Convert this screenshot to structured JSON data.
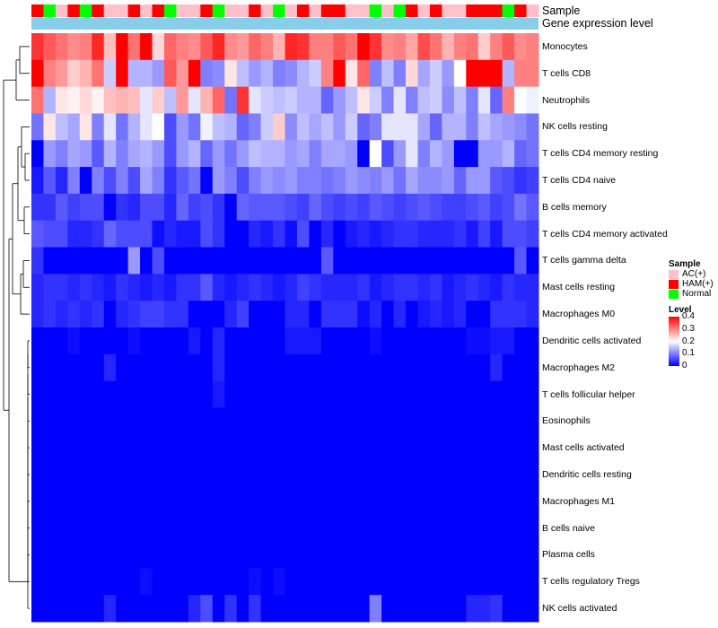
{
  "chart_data": {
    "type": "heatmap",
    "annotation_labels": {
      "sample": "Sample",
      "gene_expression": "Gene expression level"
    },
    "sample_groups": [
      "AC(+)",
      "HAM(+)",
      "Normal"
    ],
    "sample_colors": {
      "AC(+)": "#ffc0cb",
      "HAM(+)": "#ff0000",
      "Normal": "#00ff00"
    },
    "gene_expression_color": "#87ceeb",
    "samples": [
      "HAM(+)",
      "Normal",
      "AC(+)",
      "HAM(+)",
      "Normal",
      "HAM(+)",
      "AC(+)",
      "AC(+)",
      "HAM(+)",
      "AC(+)",
      "HAM(+)",
      "Normal",
      "AC(+)",
      "AC(+)",
      "HAM(+)",
      "Normal",
      "AC(+)",
      "AC(+)",
      "HAM(+)",
      "AC(+)",
      "Normal",
      "AC(+)",
      "HAM(+)",
      "AC(+)",
      "HAM(+)",
      "HAM(+)",
      "AC(+)",
      "AC(+)",
      "Normal",
      "AC(+)",
      "Normal",
      "HAM(+)",
      "AC(+)",
      "HAM(+)",
      "AC(+)",
      "AC(+)",
      "HAM(+)",
      "HAM(+)",
      "HAM(+)",
      "Normal",
      "HAM(+)",
      "AC(+)"
    ],
    "rows": [
      "Monocytes",
      "T cells CD8",
      "Neutrophils",
      "NK cells resting",
      "T cells CD4 memory resting",
      "T cells CD4 naive",
      "B cells memory",
      "T cells CD4 memory activated",
      "T cells gamma delta",
      "Mast cells resting",
      "Macrophages M0",
      "Dendritic cells activated",
      "Macrophages M2",
      "T cells follicular helper",
      "Eosinophils",
      "Mast cells activated",
      "Dendritic cells resting",
      "Macrophages M1",
      "B cells naive",
      "Plasma cells",
      "T cells regulatory  Tregs",
      "NK cells activated"
    ],
    "values": [
      [
        0.36,
        0.33,
        0.31,
        0.29,
        0.3,
        0.37,
        0.25,
        0.4,
        0.31,
        0.4,
        0.23,
        0.32,
        0.3,
        0.29,
        0.33,
        0.37,
        0.29,
        0.28,
        0.32,
        0.3,
        0.26,
        0.37,
        0.36,
        0.3,
        0.3,
        0.33,
        0.31,
        0.4,
        0.36,
        0.29,
        0.3,
        0.27,
        0.34,
        0.31,
        0.26,
        0.3,
        0.31,
        0.24,
        0.3,
        0.33,
        0.29,
        0.3
      ],
      [
        0.4,
        0.3,
        0.28,
        0.24,
        0.26,
        0.31,
        0.16,
        0.4,
        0.14,
        0.14,
        0.12,
        0.33,
        0.28,
        0.4,
        0.1,
        0.11,
        0.22,
        0.15,
        0.12,
        0.14,
        0.1,
        0.11,
        0.14,
        0.16,
        0.3,
        0.4,
        0.22,
        0.32,
        0.1,
        0.15,
        0.1,
        0.23,
        0.13,
        0.16,
        0.12,
        0.2,
        0.4,
        0.4,
        0.4,
        0.14,
        0.3,
        0.3
      ],
      [
        0.31,
        0.14,
        0.22,
        0.21,
        0.23,
        0.21,
        0.25,
        0.26,
        0.25,
        0.18,
        0.24,
        0.15,
        0.28,
        0.18,
        0.26,
        0.32,
        0.09,
        0.36,
        0.18,
        0.16,
        0.15,
        0.16,
        0.14,
        0.14,
        0.08,
        0.12,
        0.15,
        0.22,
        0.16,
        0.1,
        0.18,
        0.1,
        0.15,
        0.16,
        0.11,
        0.15,
        0.1,
        0.18,
        0.08,
        0.3,
        0.2,
        0.19
      ],
      [
        0.09,
        0.22,
        0.15,
        0.13,
        0.22,
        0.1,
        0.18,
        0.09,
        0.14,
        0.18,
        0.2,
        0.06,
        0.12,
        0.09,
        0.19,
        0.15,
        0.14,
        0.08,
        0.1,
        0.16,
        0.24,
        0.11,
        0.15,
        0.13,
        0.15,
        0.12,
        0.16,
        0.08,
        0.1,
        0.18,
        0.18,
        0.18,
        0.13,
        0.08,
        0.14,
        0.14,
        0.1,
        0.15,
        0.13,
        0.12,
        0.11,
        0.09
      ],
      [
        0.0,
        0.12,
        0.1,
        0.13,
        0.12,
        0.07,
        0.14,
        0.1,
        0.13,
        0.14,
        0.12,
        0.06,
        0.12,
        0.14,
        0.08,
        0.12,
        0.09,
        0.12,
        0.15,
        0.14,
        0.14,
        0.12,
        0.13,
        0.1,
        0.13,
        0.13,
        0.12,
        0.0,
        0.2,
        0.06,
        0.12,
        0.18,
        0.1,
        0.14,
        0.12,
        0.0,
        0.0,
        0.12,
        0.12,
        0.14,
        0.08,
        0.09
      ],
      [
        0.02,
        0.07,
        0.03,
        0.1,
        0.0,
        0.1,
        0.06,
        0.1,
        0.06,
        0.13,
        0.1,
        0.04,
        0.07,
        0.09,
        0.0,
        0.12,
        0.1,
        0.06,
        0.1,
        0.12,
        0.11,
        0.12,
        0.1,
        0.1,
        0.09,
        0.1,
        0.12,
        0.11,
        0.1,
        0.12,
        0.09,
        0.13,
        0.11,
        0.11,
        0.12,
        0.08,
        0.12,
        0.12,
        0.07,
        0.06,
        0.04,
        0.05
      ],
      [
        0.04,
        0.04,
        0.07,
        0.05,
        0.06,
        0.06,
        0.0,
        0.04,
        0.03,
        0.06,
        0.06,
        0.03,
        0.08,
        0.05,
        0.06,
        0.04,
        0.0,
        0.08,
        0.07,
        0.07,
        0.07,
        0.06,
        0.05,
        0.08,
        0.06,
        0.05,
        0.06,
        0.05,
        0.07,
        0.06,
        0.05,
        0.06,
        0.07,
        0.06,
        0.05,
        0.05,
        0.06,
        0.07,
        0.05,
        0.06,
        0.09,
        0.07
      ],
      [
        0.07,
        0.06,
        0.06,
        0.03,
        0.03,
        0.04,
        0.08,
        0.06,
        0.06,
        0.06,
        0.01,
        0.03,
        0.02,
        0.02,
        0.06,
        0.04,
        0.0,
        0.0,
        0.03,
        0.02,
        0.04,
        0.01,
        0.06,
        0.0,
        0.03,
        0.0,
        0.02,
        0.03,
        0.02,
        0.03,
        0.04,
        0.04,
        0.03,
        0.03,
        0.03,
        0.04,
        0.02,
        0.05,
        0.02,
        0.06,
        0.06,
        0.05
      ],
      [
        0.04,
        0.0,
        0.0,
        0.0,
        0.0,
        0.0,
        0.0,
        0.0,
        0.12,
        0.0,
        0.06,
        0.0,
        0.0,
        0.0,
        0.0,
        0.0,
        0.0,
        0.0,
        0.0,
        0.0,
        0.0,
        0.0,
        0.0,
        0.0,
        0.07,
        0.0,
        0.0,
        0.0,
        0.0,
        0.0,
        0.0,
        0.0,
        0.0,
        0.0,
        0.0,
        0.0,
        0.0,
        0.0,
        0.0,
        0.0,
        0.07,
        0.0
      ],
      [
        0.03,
        0.04,
        0.04,
        0.03,
        0.04,
        0.03,
        0.02,
        0.04,
        0.03,
        0.02,
        0.03,
        0.02,
        0.04,
        0.04,
        0.07,
        0.03,
        0.02,
        0.03,
        0.04,
        0.03,
        0.02,
        0.03,
        0.05,
        0.04,
        0.03,
        0.03,
        0.03,
        0.04,
        0.02,
        0.03,
        0.04,
        0.04,
        0.03,
        0.04,
        0.02,
        0.03,
        0.04,
        0.03,
        0.02,
        0.04,
        0.03,
        0.03
      ],
      [
        0.03,
        0.04,
        0.03,
        0.04,
        0.03,
        0.04,
        0.0,
        0.03,
        0.04,
        0.05,
        0.05,
        0.04,
        0.04,
        0.0,
        0.0,
        0.0,
        0.03,
        0.05,
        0.0,
        0.0,
        0.0,
        0.03,
        0.03,
        0.0,
        0.04,
        0.04,
        0.04,
        0.01,
        0.03,
        0.0,
        0.03,
        0.0,
        0.02,
        0.03,
        0.02,
        0.03,
        0.0,
        0.0,
        0.04,
        0.04,
        0.04,
        0.03
      ],
      [
        0.0,
        0.0,
        0.0,
        0.01,
        0.0,
        0.0,
        0.0,
        0.0,
        0.01,
        0.0,
        0.0,
        0.0,
        0.0,
        0.02,
        0.0,
        0.03,
        0.0,
        0.0,
        0.0,
        0.0,
        0.0,
        0.02,
        0.02,
        0.02,
        0.0,
        0.0,
        0.0,
        0.0,
        0.01,
        0.0,
        0.0,
        0.0,
        0.0,
        0.0,
        0.0,
        0.0,
        0.01,
        0.01,
        0.02,
        0.02,
        0.0,
        0.0
      ],
      [
        0.0,
        0.0,
        0.0,
        0.0,
        0.0,
        0.0,
        0.03,
        0.0,
        0.0,
        0.0,
        0.0,
        0.0,
        0.0,
        0.0,
        0.0,
        0.03,
        0.0,
        0.0,
        0.0,
        0.0,
        0.0,
        0.0,
        0.0,
        0.0,
        0.0,
        0.0,
        0.0,
        0.0,
        0.0,
        0.0,
        0.0,
        0.0,
        0.0,
        0.0,
        0.0,
        0.0,
        0.0,
        0.0,
        0.03,
        0.0,
        0.0,
        0.0
      ],
      [
        0.0,
        0.0,
        0.0,
        0.0,
        0.0,
        0.0,
        0.0,
        0.0,
        0.0,
        0.0,
        0.0,
        0.0,
        0.0,
        0.0,
        0.0,
        0.02,
        0.0,
        0.0,
        0.0,
        0.0,
        0.0,
        0.0,
        0.0,
        0.0,
        0.0,
        0.0,
        0.0,
        0.0,
        0.0,
        0.0,
        0.0,
        0.0,
        0.0,
        0.0,
        0.0,
        0.0,
        0.0,
        0.0,
        0.0,
        0.0,
        0.0,
        0.0
      ],
      [
        0.0,
        0.0,
        0.0,
        0.0,
        0.0,
        0.0,
        0.0,
        0.0,
        0.0,
        0.0,
        0.0,
        0.0,
        0.0,
        0.0,
        0.0,
        0.0,
        0.0,
        0.0,
        0.0,
        0.0,
        0.0,
        0.0,
        0.0,
        0.0,
        0.0,
        0.0,
        0.0,
        0.0,
        0.0,
        0.0,
        0.0,
        0.0,
        0.0,
        0.0,
        0.0,
        0.0,
        0.0,
        0.0,
        0.0,
        0.0,
        0.0,
        0.0
      ],
      [
        0.0,
        0.0,
        0.0,
        0.0,
        0.0,
        0.0,
        0.0,
        0.0,
        0.0,
        0.0,
        0.0,
        0.0,
        0.0,
        0.0,
        0.0,
        0.0,
        0.0,
        0.0,
        0.0,
        0.0,
        0.0,
        0.0,
        0.0,
        0.0,
        0.0,
        0.0,
        0.0,
        0.0,
        0.0,
        0.0,
        0.0,
        0.0,
        0.0,
        0.0,
        0.0,
        0.0,
        0.0,
        0.0,
        0.0,
        0.0,
        0.0,
        0.0
      ],
      [
        0.0,
        0.0,
        0.0,
        0.0,
        0.0,
        0.0,
        0.0,
        0.0,
        0.0,
        0.0,
        0.0,
        0.0,
        0.0,
        0.0,
        0.0,
        0.0,
        0.0,
        0.0,
        0.0,
        0.0,
        0.0,
        0.0,
        0.0,
        0.0,
        0.0,
        0.0,
        0.0,
        0.0,
        0.0,
        0.0,
        0.0,
        0.0,
        0.0,
        0.0,
        0.0,
        0.0,
        0.0,
        0.0,
        0.0,
        0.0,
        0.0,
        0.0
      ],
      [
        0.0,
        0.0,
        0.0,
        0.0,
        0.0,
        0.0,
        0.0,
        0.0,
        0.0,
        0.0,
        0.0,
        0.0,
        0.0,
        0.0,
        0.0,
        0.0,
        0.0,
        0.0,
        0.0,
        0.0,
        0.0,
        0.0,
        0.0,
        0.0,
        0.0,
        0.0,
        0.0,
        0.0,
        0.0,
        0.0,
        0.0,
        0.0,
        0.0,
        0.0,
        0.0,
        0.0,
        0.0,
        0.0,
        0.0,
        0.0,
        0.0,
        0.0
      ],
      [
        0.0,
        0.0,
        0.0,
        0.0,
        0.0,
        0.0,
        0.0,
        0.0,
        0.0,
        0.0,
        0.0,
        0.0,
        0.0,
        0.0,
        0.0,
        0.0,
        0.0,
        0.0,
        0.0,
        0.0,
        0.0,
        0.0,
        0.0,
        0.0,
        0.0,
        0.0,
        0.0,
        0.0,
        0.0,
        0.0,
        0.0,
        0.0,
        0.0,
        0.0,
        0.0,
        0.0,
        0.0,
        0.0,
        0.0,
        0.0,
        0.0,
        0.0
      ],
      [
        0.0,
        0.0,
        0.0,
        0.0,
        0.0,
        0.0,
        0.0,
        0.0,
        0.0,
        0.0,
        0.0,
        0.0,
        0.0,
        0.0,
        0.0,
        0.0,
        0.0,
        0.0,
        0.0,
        0.0,
        0.0,
        0.0,
        0.0,
        0.0,
        0.0,
        0.0,
        0.0,
        0.0,
        0.0,
        0.0,
        0.0,
        0.0,
        0.0,
        0.0,
        0.0,
        0.0,
        0.0,
        0.0,
        0.0,
        0.0,
        0.0,
        0.0
      ],
      [
        0.0,
        0.0,
        0.0,
        0.0,
        0.0,
        0.0,
        0.0,
        0.0,
        0.0,
        0.01,
        0.0,
        0.0,
        0.0,
        0.0,
        0.0,
        0.0,
        0.0,
        0.0,
        0.01,
        0.0,
        0.01,
        0.0,
        0.0,
        0.0,
        0.0,
        0.0,
        0.0,
        0.0,
        0.0,
        0.0,
        0.0,
        0.0,
        0.0,
        0.0,
        0.0,
        0.0,
        0.0,
        0.0,
        0.0,
        0.0,
        0.0,
        0.0
      ],
      [
        0.0,
        0.0,
        0.0,
        0.0,
        0.0,
        0.0,
        0.03,
        0.0,
        0.0,
        0.0,
        0.0,
        0.0,
        0.0,
        0.03,
        0.06,
        0.0,
        0.04,
        0.0,
        0.04,
        0.0,
        0.0,
        0.0,
        0.0,
        0.0,
        0.0,
        0.0,
        0.0,
        0.0,
        0.1,
        0.0,
        0.0,
        0.0,
        0.0,
        0.0,
        0.0,
        0.0,
        0.03,
        0.03,
        0.04,
        0.0,
        0.0,
        0.0
      ]
    ],
    "legend": {
      "sample_title": "Sample",
      "level_title": "Level",
      "level_ticks": [
        "0.4",
        "0.3",
        "0.2",
        "0.1",
        "0"
      ],
      "level_tick_values": [
        0.4,
        0.3,
        0.2,
        0.1,
        0
      ],
      "scale_colors": {
        "low": "#0000ff",
        "mid": "#ffffff",
        "high": "#ff0000"
      },
      "level_range": [
        0,
        0.4
      ]
    }
  }
}
